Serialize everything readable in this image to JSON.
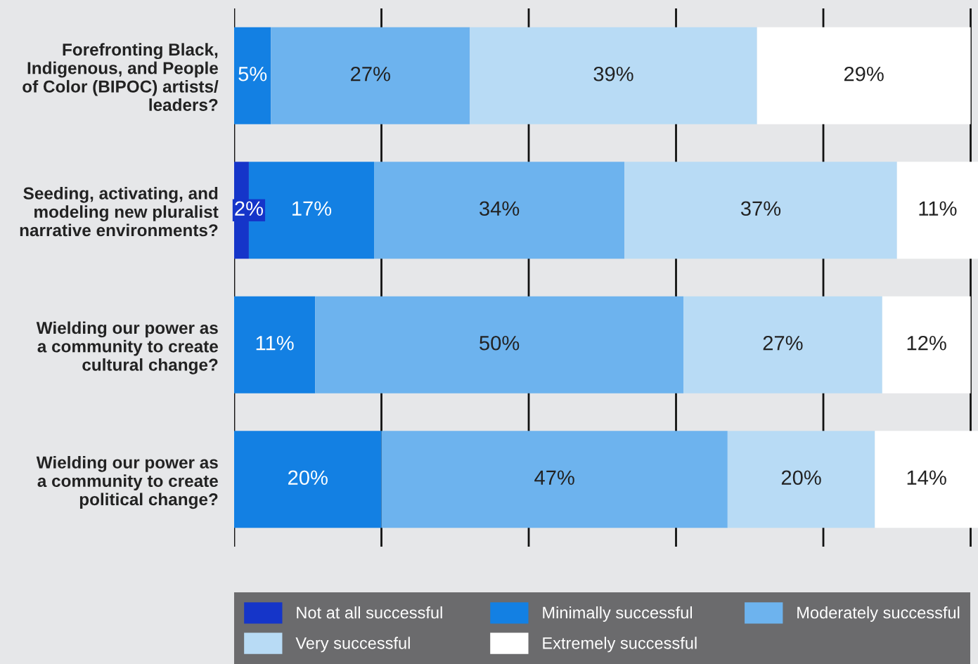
{
  "chart_data": {
    "type": "bar",
    "orientation": "horizontal",
    "stacked": true,
    "categories": [
      "Forefronting Black,\nIndigenous, and People\nof Color (BIPOC) artists/\nleaders?",
      "Seeding, activating, and\nmodeling new pluralist\nnarrative environments?",
      "Wielding our power as\na community to create\ncultural change?",
      "Wielding our power as\na community to create\npolitical change?"
    ],
    "series": [
      {
        "name": "Not at all successful",
        "color": "#1535c9",
        "values": [
          0,
          2,
          0,
          0
        ],
        "value_labels": [
          null,
          "2%",
          null,
          null
        ]
      },
      {
        "name": "Minimally successful",
        "color": "#1380e3",
        "values": [
          5,
          17,
          11,
          20
        ],
        "value_labels": [
          "5%",
          "17%",
          "11%",
          "20%"
        ]
      },
      {
        "name": "Moderately successful",
        "color": "#6db3ee",
        "values": [
          27,
          34,
          50,
          47
        ],
        "value_labels": [
          "27%",
          "34%",
          "50%",
          "47%"
        ]
      },
      {
        "name": "Very successful",
        "color": "#b8dbf5",
        "values": [
          39,
          37,
          27,
          20
        ],
        "value_labels": [
          "39%",
          "37%",
          "27%",
          "20%"
        ]
      },
      {
        "name": "Extremely successful",
        "color": "#ffffff",
        "values": [
          29,
          11,
          12,
          14
        ],
        "value_labels": [
          "29%",
          "11%",
          "12%",
          "14%"
        ]
      }
    ],
    "xlim": [
      0,
      101
    ],
    "xticks": [
      {
        "value": 0,
        "label": null
      },
      {
        "value": 20,
        "label": null
      },
      {
        "value": 40,
        "label": null
      },
      {
        "value": 60,
        "label": null
      },
      {
        "value": 80,
        "label": null
      },
      {
        "value": 100,
        "label": null
      }
    ],
    "grid": "x",
    "tick_labels": "y",
    "legend": "bottom"
  }
}
